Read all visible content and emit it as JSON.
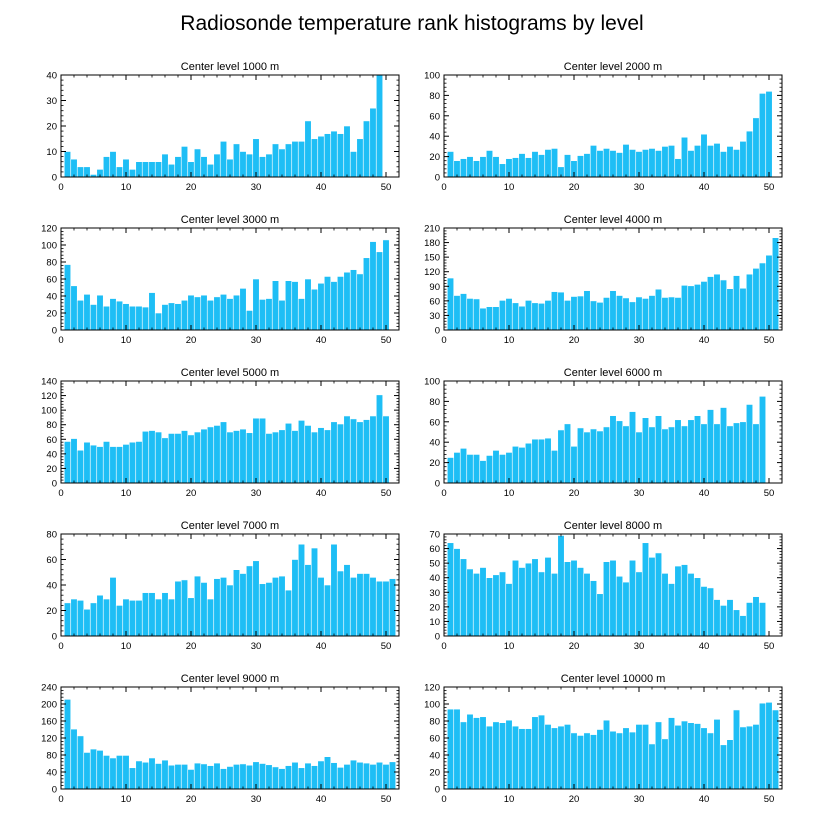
{
  "title": "Radiosonde temperature rank histograms by level",
  "colors": {
    "bar": "#1EBEF5",
    "bar_edge": "#ffffff",
    "axis": "#000000"
  },
  "chart_data": [
    {
      "type": "bar",
      "title": "Center level 1000 m",
      "x_ticks": [
        0,
        10,
        20,
        30,
        40,
        50
      ],
      "y_ticks": [
        0,
        10,
        20,
        30,
        40
      ],
      "ylim": [
        0,
        40
      ],
      "values": [
        10,
        7,
        4,
        4,
        1,
        3,
        8,
        10,
        4,
        7,
        3,
        6,
        6,
        6,
        6,
        9,
        5,
        8,
        12,
        6,
        11,
        8,
        5,
        9,
        14,
        7,
        13,
        10,
        9,
        15,
        8,
        9,
        13,
        11,
        13,
        14,
        14,
        22,
        15,
        16,
        17,
        18,
        17,
        20,
        10,
        15,
        22,
        27,
        40
      ]
    },
    {
      "type": "bar",
      "title": "Center level 2000 m",
      "x_ticks": [
        0,
        10,
        20,
        30,
        40,
        50
      ],
      "y_ticks": [
        0,
        20,
        40,
        60,
        80,
        100
      ],
      "ylim": [
        0,
        100
      ],
      "values": [
        25,
        16,
        18,
        20,
        16,
        20,
        26,
        20,
        13,
        18,
        19,
        23,
        19,
        25,
        22,
        27,
        28,
        10,
        22,
        16,
        21,
        23,
        31,
        26,
        28,
        26,
        24,
        32,
        27,
        25,
        27,
        28,
        26,
        30,
        31,
        18,
        39,
        26,
        31,
        42,
        31,
        33,
        25,
        30,
        27,
        35,
        45,
        58,
        82,
        84
      ]
    },
    {
      "type": "bar",
      "title": "Center level 3000 m",
      "x_ticks": [
        0,
        10,
        20,
        30,
        40,
        50
      ],
      "y_ticks": [
        0,
        20,
        40,
        60,
        80,
        100,
        120
      ],
      "ylim": [
        0,
        120
      ],
      "values": [
        77,
        52,
        35,
        42,
        30,
        41,
        28,
        37,
        34,
        31,
        28,
        28,
        27,
        44,
        20,
        30,
        32,
        31,
        35,
        41,
        39,
        41,
        35,
        39,
        42,
        37,
        41,
        49,
        23,
        60,
        36,
        37,
        58,
        35,
        58,
        57,
        37,
        60,
        48,
        55,
        63,
        57,
        63,
        68,
        71,
        66,
        85,
        104,
        92,
        106
      ]
    },
    {
      "type": "bar",
      "title": "Center level 4000 m",
      "x_ticks": [
        0,
        10,
        20,
        30,
        40,
        50
      ],
      "y_ticks": [
        0,
        30,
        60,
        90,
        120,
        150,
        180,
        210
      ],
      "ylim": [
        0,
        210
      ],
      "values": [
        107,
        71,
        75,
        65,
        64,
        45,
        48,
        48,
        61,
        65,
        56,
        49,
        61,
        56,
        55,
        61,
        79,
        78,
        61,
        69,
        70,
        81,
        60,
        57,
        67,
        81,
        71,
        66,
        58,
        68,
        65,
        71,
        84,
        67,
        68,
        67,
        92,
        91,
        94,
        100,
        110,
        115,
        103,
        85,
        112,
        86,
        115,
        127,
        138,
        154,
        190
      ]
    },
    {
      "type": "bar",
      "title": "Center level 5000 m",
      "x_ticks": [
        0,
        10,
        20,
        30,
        40,
        50
      ],
      "y_ticks": [
        0,
        20,
        40,
        60,
        80,
        100,
        120,
        140
      ],
      "ylim": [
        0,
        140
      ],
      "values": [
        57,
        61,
        45,
        56,
        52,
        50,
        57,
        50,
        50,
        53,
        56,
        57,
        71,
        72,
        70,
        62,
        68,
        68,
        72,
        66,
        70,
        74,
        77,
        79,
        84,
        70,
        72,
        74,
        69,
        89,
        89,
        68,
        70,
        73,
        82,
        72,
        86,
        79,
        70,
        76,
        73,
        84,
        81,
        92,
        88,
        84,
        87,
        92,
        121,
        92
      ]
    },
    {
      "type": "bar",
      "title": "Center level 6000 m",
      "x_ticks": [
        0,
        10,
        20,
        30,
        40,
        50
      ],
      "y_ticks": [
        0,
        20,
        40,
        60,
        80,
        100
      ],
      "ylim": [
        0,
        100
      ],
      "values": [
        25,
        30,
        34,
        28,
        28,
        22,
        27,
        32,
        28,
        30,
        36,
        35,
        39,
        43,
        43,
        44,
        32,
        52,
        58,
        36,
        54,
        50,
        53,
        51,
        55,
        66,
        61,
        56,
        70,
        50,
        64,
        55,
        66,
        53,
        55,
        62,
        56,
        62,
        66,
        58,
        72,
        58,
        74,
        56,
        59,
        60,
        77,
        58,
        85
      ]
    },
    {
      "type": "bar",
      "title": "Center level 7000 m",
      "x_ticks": [
        0,
        10,
        20,
        30,
        40,
        50
      ],
      "y_ticks": [
        0,
        20,
        40,
        60,
        80
      ],
      "ylim": [
        0,
        80
      ],
      "values": [
        26,
        29,
        28,
        21,
        26,
        32,
        29,
        46,
        24,
        29,
        28,
        28,
        34,
        34,
        29,
        34,
        29,
        43,
        44,
        30,
        47,
        42,
        29,
        45,
        46,
        40,
        52,
        49,
        55,
        59,
        41,
        42,
        46,
        47,
        36,
        60,
        72,
        56,
        69,
        46,
        40,
        72,
        51,
        56,
        46,
        49,
        49,
        46,
        43,
        43,
        45
      ]
    },
    {
      "type": "bar",
      "title": "Center level 8000 m",
      "x_ticks": [
        0,
        10,
        20,
        30,
        40,
        50
      ],
      "y_ticks": [
        0,
        10,
        20,
        30,
        40,
        50,
        60,
        70
      ],
      "ylim": [
        0,
        70
      ],
      "values": [
        64,
        60,
        53,
        46,
        43,
        47,
        40,
        42,
        44,
        36,
        52,
        47,
        50,
        53,
        44,
        54,
        43,
        69,
        51,
        52,
        47,
        43,
        38,
        29,
        51,
        52,
        41,
        37,
        52,
        44,
        64,
        54,
        57,
        43,
        36,
        48,
        49,
        43,
        40,
        34,
        33,
        25,
        21,
        25,
        18,
        14,
        23,
        27,
        23
      ]
    },
    {
      "type": "bar",
      "title": "Center level 9000 m",
      "x_ticks": [
        0,
        10,
        20,
        30,
        40,
        50
      ],
      "y_ticks": [
        0,
        40,
        80,
        120,
        160,
        200,
        240
      ],
      "ylim": [
        0,
        240
      ],
      "values": [
        211,
        141,
        125,
        86,
        94,
        91,
        79,
        73,
        79,
        79,
        50,
        66,
        63,
        73,
        60,
        68,
        56,
        58,
        58,
        46,
        61,
        59,
        55,
        61,
        48,
        53,
        58,
        59,
        56,
        64,
        60,
        57,
        52,
        48,
        55,
        63,
        50,
        61,
        55,
        66,
        76,
        62,
        51,
        58,
        68,
        63,
        61,
        58,
        63,
        58,
        64
      ]
    },
    {
      "type": "bar",
      "title": "Center level 10000 m",
      "x_ticks": [
        0,
        10,
        20,
        30,
        40,
        50
      ],
      "y_ticks": [
        0,
        20,
        40,
        60,
        80,
        100,
        120
      ],
      "ylim": [
        0,
        120
      ],
      "values": [
        94,
        94,
        79,
        88,
        84,
        85,
        74,
        79,
        78,
        81,
        74,
        71,
        71,
        85,
        87,
        76,
        72,
        74,
        76,
        66,
        63,
        66,
        64,
        70,
        81,
        68,
        66,
        72,
        67,
        76,
        76,
        53,
        79,
        59,
        84,
        75,
        80,
        78,
        77,
        72,
        66,
        82,
        52,
        58,
        93,
        73,
        74,
        76,
        101,
        102,
        93
      ]
    }
  ]
}
